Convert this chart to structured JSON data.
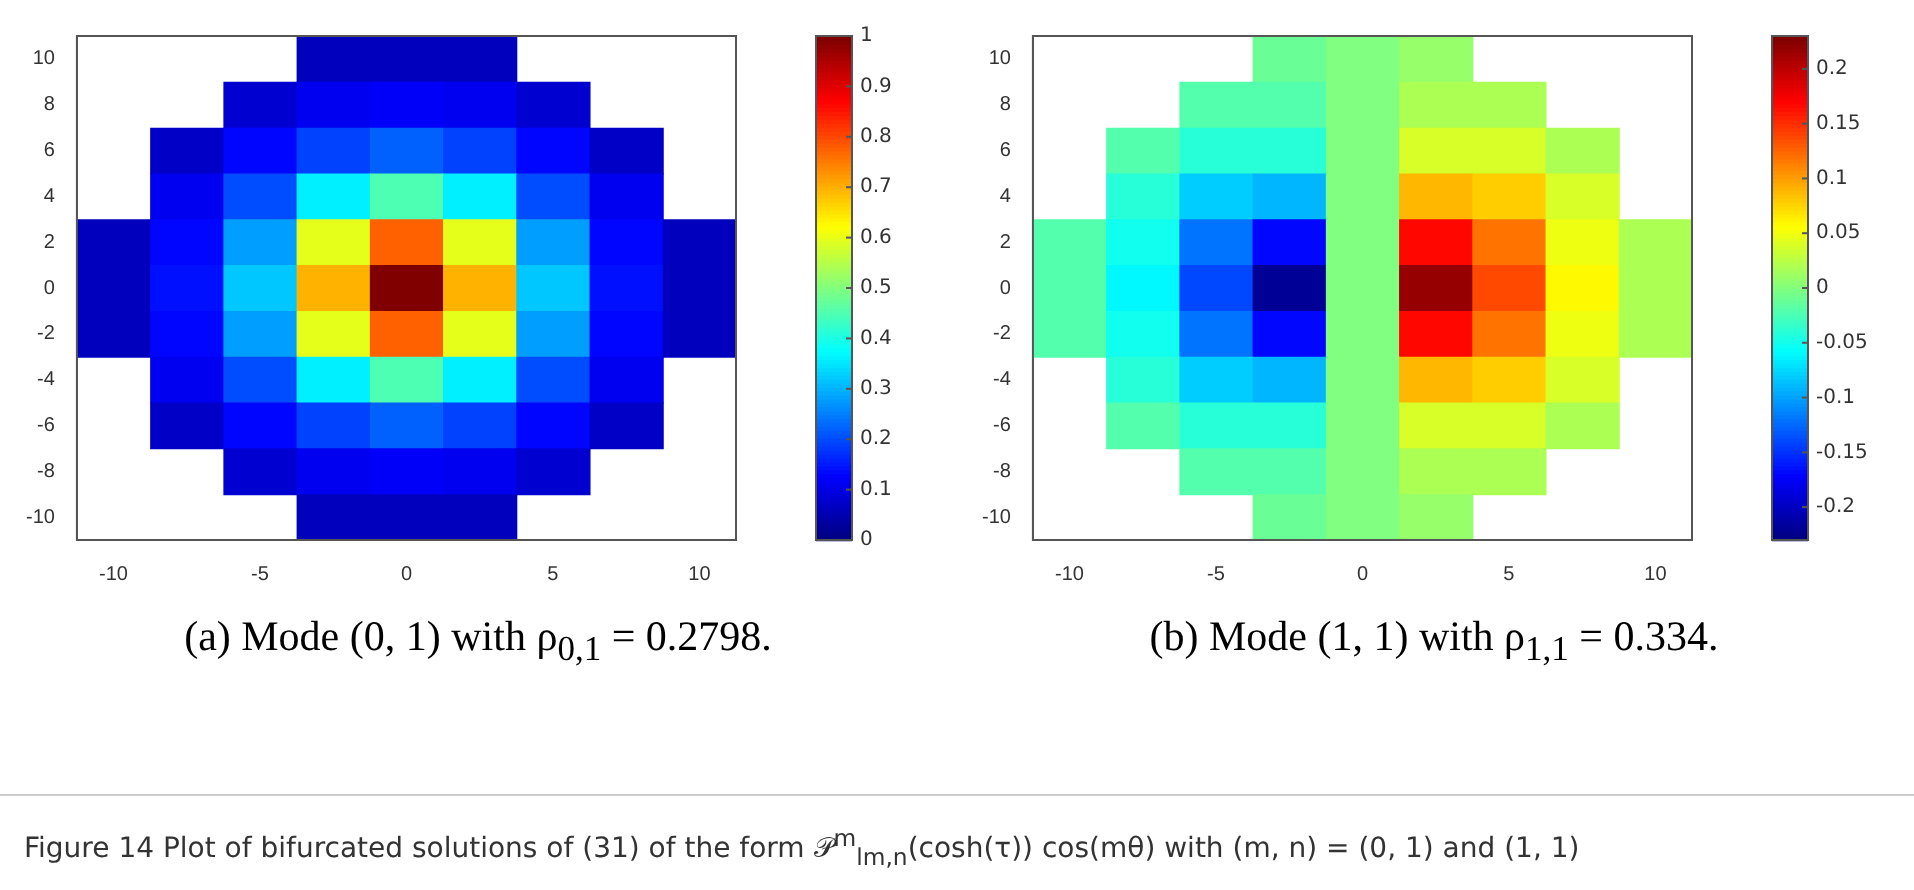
{
  "chart_data": [
    {
      "type": "heatmap",
      "annotations": [
        "(a) Mode (0, 1) with ρ$_{0,1}$ = 0.2798."
      ],
      "categories": [
        "-10",
        null,
        "-5",
        null,
        "0",
        null,
        "5",
        null,
        "10"
      ],
      "y_categories": [
        "10",
        "8",
        "6",
        "4",
        "2",
        "0",
        "-2",
        "-4",
        "-6",
        "-8",
        "-10"
      ],
      "clim": [
        0,
        1
      ],
      "cticks": [
        0,
        0.1,
        0.2,
        0.3,
        0.4,
        0.5,
        0.6,
        0.7,
        0.8,
        0.9,
        1
      ],
      "grid": false,
      "cells": [
        [
          null,
          null,
          null,
          0.06,
          0.06,
          0.06,
          null,
          null,
          null
        ],
        [
          null,
          null,
          0.08,
          0.11,
          0.12,
          0.11,
          0.08,
          null,
          null
        ],
        [
          null,
          0.07,
          0.13,
          0.19,
          0.22,
          0.19,
          0.13,
          0.07,
          null
        ],
        [
          null,
          0.11,
          0.2,
          0.36,
          0.45,
          0.36,
          0.2,
          0.11,
          null
        ],
        [
          0.06,
          0.13,
          0.28,
          0.6,
          0.78,
          0.6,
          0.28,
          0.13,
          0.06
        ],
        [
          0.06,
          0.14,
          0.32,
          0.7,
          1,
          0.7,
          0.32,
          0.14,
          0.06
        ],
        [
          0.06,
          0.13,
          0.28,
          0.6,
          0.78,
          0.6,
          0.28,
          0.13,
          0.06
        ],
        [
          null,
          0.11,
          0.2,
          0.36,
          0.45,
          0.36,
          0.2,
          0.11,
          null
        ],
        [
          null,
          0.07,
          0.13,
          0.19,
          0.22,
          0.19,
          0.13,
          0.07,
          null
        ],
        [
          null,
          null,
          0.08,
          0.11,
          0.12,
          0.11,
          0.08,
          null,
          null
        ],
        [
          null,
          null,
          null,
          0.06,
          0.06,
          0.06,
          null,
          null,
          null
        ]
      ]
    },
    {
      "type": "heatmap",
      "annotations": [
        "(b) Mode (1, 1) with ρ$_{1,1}$ = 0.334.",
        "Figure 14  Plot of bifurcated solutions of (31) of the form 𝒫$^{m}$$_{lm,n}$(cosh(τ)) cos(mθ) with (m, n) = (0, 1) and (1, 1)"
      ],
      "categories": [
        "-10",
        null,
        "-5",
        null,
        "0",
        null,
        "5",
        null,
        "10"
      ],
      "y_categories": [
        "10",
        "8",
        "6",
        "4",
        "2",
        "0",
        "-2",
        "-4",
        "-6",
        "-8",
        "-10"
      ],
      "clim": [
        -0.23,
        0.23
      ],
      "cticks": [
        -0.2,
        -0.15,
        -0.1,
        -0.05,
        0,
        0.05,
        0.1,
        0.15,
        0.2
      ],
      "grid": false,
      "cells": [
        [
          null,
          null,
          null,
          -0.01,
          0,
          0.01,
          null,
          null,
          null
        ],
        [
          null,
          null,
          -0.02,
          -0.02,
          0,
          0.02,
          0.02,
          null,
          null
        ],
        [
          null,
          -0.02,
          -0.04,
          -0.04,
          0,
          0.04,
          0.04,
          0.02,
          null
        ],
        [
          null,
          -0.04,
          -0.08,
          -0.09,
          0,
          0.09,
          0.08,
          0.04,
          null
        ],
        [
          -0.02,
          -0.05,
          -0.12,
          -0.17,
          0,
          0.17,
          0.12,
          0.05,
          0.02
        ],
        [
          -0.02,
          -0.06,
          -0.14,
          -0.22,
          0,
          0.22,
          0.14,
          0.06,
          0.02
        ],
        [
          -0.02,
          -0.05,
          -0.12,
          -0.17,
          0,
          0.17,
          0.12,
          0.05,
          0.02
        ],
        [
          null,
          -0.04,
          -0.08,
          -0.09,
          0,
          0.09,
          0.08,
          0.04,
          null
        ],
        [
          null,
          -0.02,
          -0.04,
          -0.04,
          0,
          0.04,
          0.04,
          0.02,
          null
        ],
        [
          null,
          null,
          -0.02,
          -0.02,
          0,
          0.02,
          0.02,
          null,
          null
        ],
        [
          null,
          null,
          null,
          -0.01,
          0,
          0.01,
          null,
          null,
          null
        ]
      ]
    }
  ]
}
